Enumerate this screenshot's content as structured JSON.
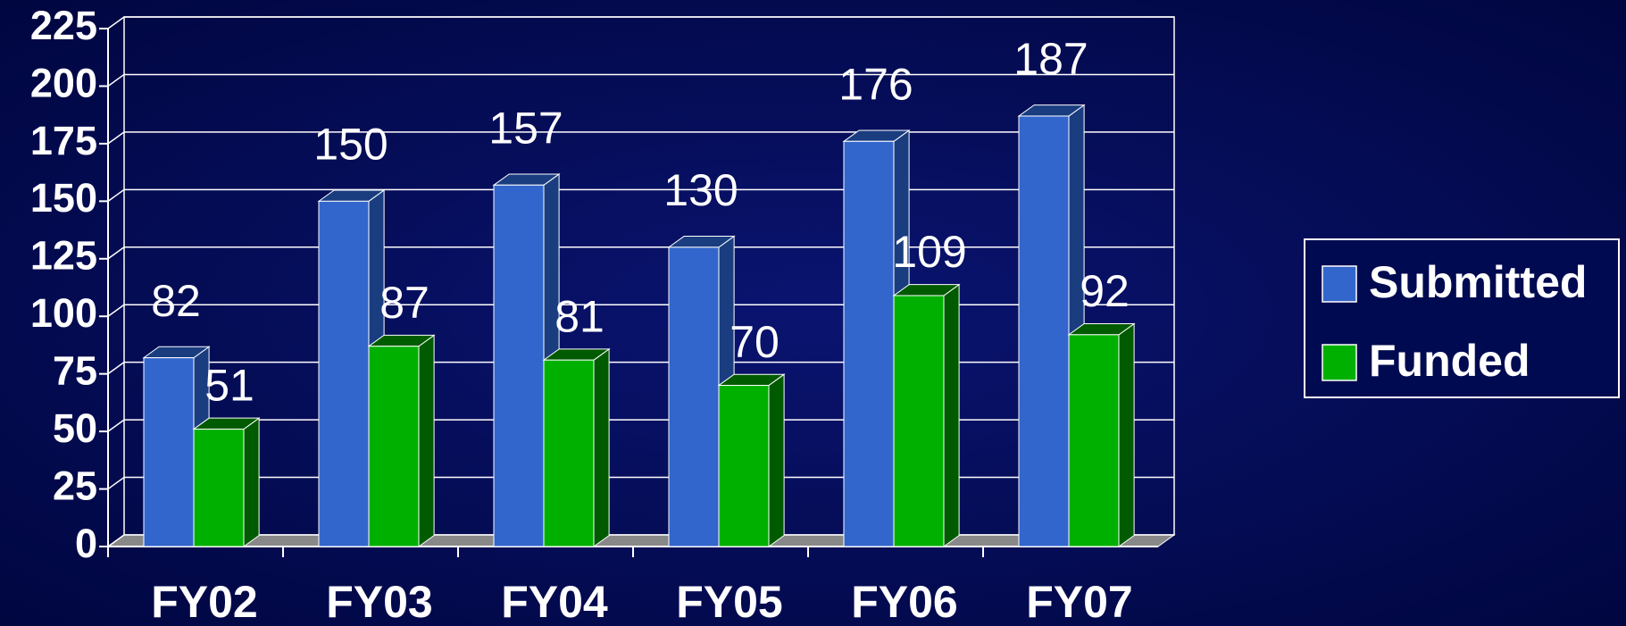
{
  "chart_data": {
    "type": "bar",
    "categories": [
      "FY02",
      "FY03",
      "FY04",
      "FY05",
      "FY06",
      "FY07"
    ],
    "series": [
      {
        "name": "Submitted",
        "color": "#3366cc",
        "side": "#1a3d80",
        "values": [
          82,
          150,
          157,
          130,
          176,
          187
        ]
      },
      {
        "name": "Funded",
        "color": "#00b000",
        "side": "#005a00",
        "values": [
          51,
          87,
          81,
          70,
          109,
          92
        ]
      }
    ],
    "ylim": [
      0,
      225
    ],
    "yticks": [
      0,
      25,
      50,
      75,
      100,
      125,
      150,
      175,
      200,
      225
    ],
    "grid": true,
    "legend": "right"
  }
}
